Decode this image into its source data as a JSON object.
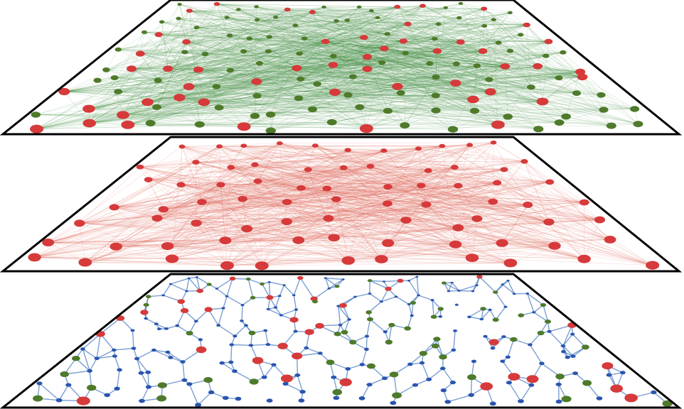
{
  "diagram": {
    "type": "multilayer-network",
    "layers": [
      {
        "id": "top",
        "description_name": "dense-layer",
        "edge_color": "#3d8a3d",
        "edge_opacity": 0.18,
        "border_color": "#000000",
        "node_kinds": [
          "green",
          "red"
        ],
        "edge_mode": "dense"
      },
      {
        "id": "middle",
        "description_name": "red-layer",
        "edge_color": "#e06a5a",
        "edge_opacity": 0.22,
        "border_color": "#000000",
        "node_kinds": [
          "red"
        ],
        "edge_mode": "dense"
      },
      {
        "id": "bottom",
        "description_name": "sparse-layer",
        "edge_color": "#4f7fc4",
        "edge_opacity": 0.75,
        "border_color": "#000000",
        "node_kinds": [
          "blue",
          "green",
          "red"
        ],
        "edge_mode": "sparse"
      }
    ],
    "node_colors": {
      "red": "#d63a3a",
      "green": "#4e7a2a",
      "blue": "#2a55b0"
    }
  }
}
